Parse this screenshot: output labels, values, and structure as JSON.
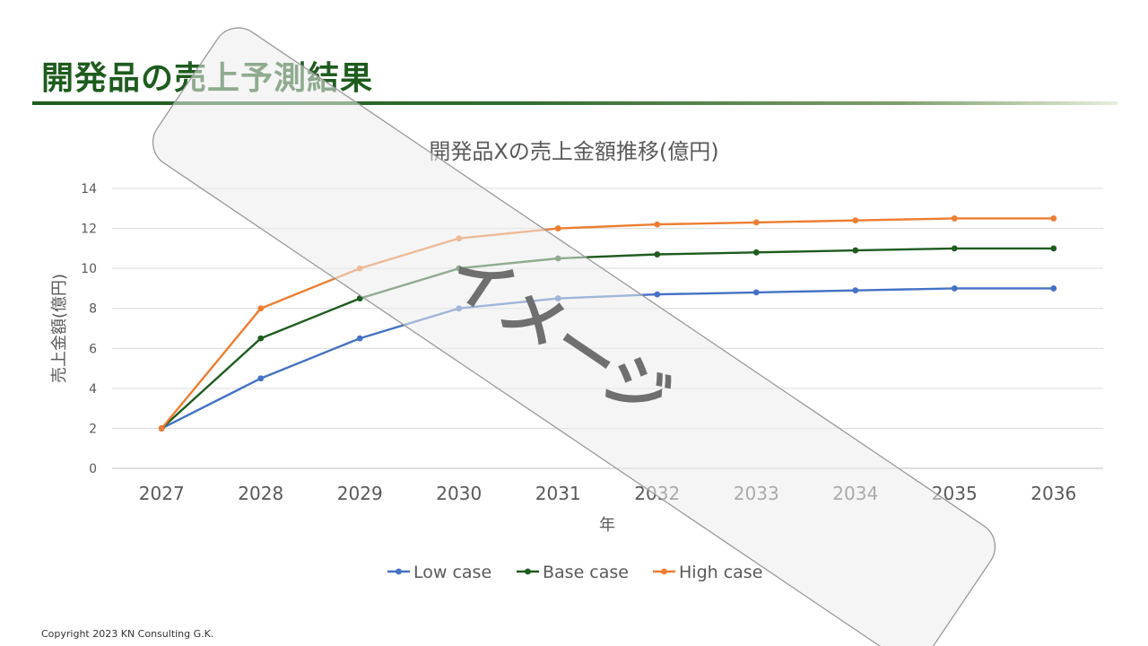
{
  "slide": {
    "title": "開発品の売上予測結果",
    "copyright": "Copyright 2023 KN Consulting G.K.",
    "watermark": "イメージ"
  },
  "colors": {
    "title": "#1e5c1e",
    "low": "#4472c4",
    "base": "#1e5c1e",
    "high": "#ed7d31"
  },
  "chart_data": {
    "type": "line",
    "title": "開発品Xの売上金額推移(億円)",
    "xlabel": "年",
    "ylabel": "売上金額(億円)",
    "ylim": [
      0,
      14
    ],
    "yticks": [
      0,
      2,
      4,
      6,
      8,
      10,
      12,
      14
    ],
    "grid": true,
    "legend_position": "bottom",
    "categories": [
      "2027",
      "2028",
      "2029",
      "2030",
      "2031",
      "2032",
      "2033",
      "2034",
      "2035",
      "2036"
    ],
    "series": [
      {
        "name": "Low case",
        "color": "#4472c4",
        "values": [
          2,
          4.5,
          6.5,
          8,
          8.5,
          8.7,
          8.8,
          8.9,
          9,
          9
        ]
      },
      {
        "name": "Base case",
        "color": "#1e5c1e",
        "values": [
          2,
          6.5,
          8.5,
          10,
          10.5,
          10.7,
          10.8,
          10.9,
          11,
          11
        ]
      },
      {
        "name": "High case",
        "color": "#ed7d31",
        "values": [
          2,
          8,
          10,
          11.5,
          12,
          12.2,
          12.3,
          12.4,
          12.5,
          12.5
        ]
      }
    ]
  }
}
